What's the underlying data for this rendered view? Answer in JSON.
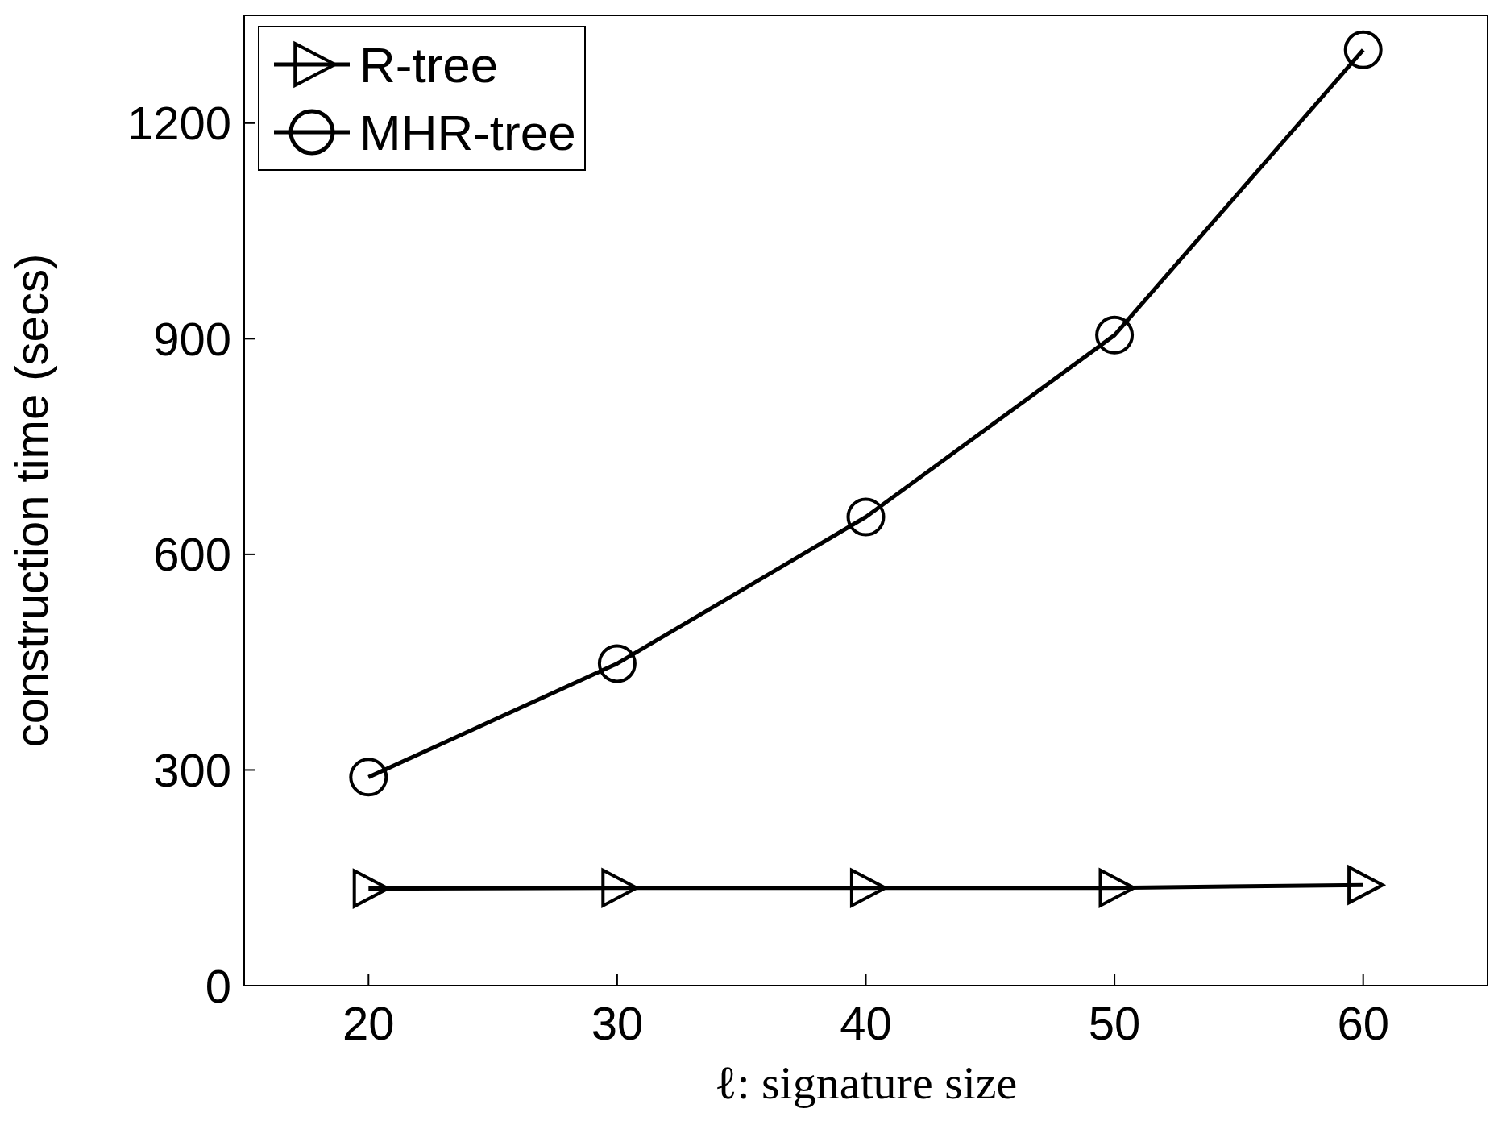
{
  "chart_data": {
    "type": "line",
    "xlabel": "ℓ: signature size",
    "ylabel": "construction time (secs)",
    "x": [
      20,
      30,
      40,
      50,
      60
    ],
    "series": [
      {
        "name": "R-tree",
        "color": "#000000",
        "marker": "triangle",
        "values": [
          135,
          136,
          136,
          136,
          140
        ]
      },
      {
        "name": "MHR-tree",
        "color": "#000000",
        "marker": "circle",
        "values": [
          290,
          448,
          652,
          905,
          1302
        ]
      }
    ],
    "xlim": [
      15,
      65
    ],
    "xticks": [
      20,
      30,
      40,
      50,
      60
    ],
    "ylim": [
      0,
      1350
    ],
    "yticks": [
      0,
      300,
      600,
      900,
      1200
    ],
    "grid": false,
    "legend": "top left",
    "line_style": "solid"
  }
}
